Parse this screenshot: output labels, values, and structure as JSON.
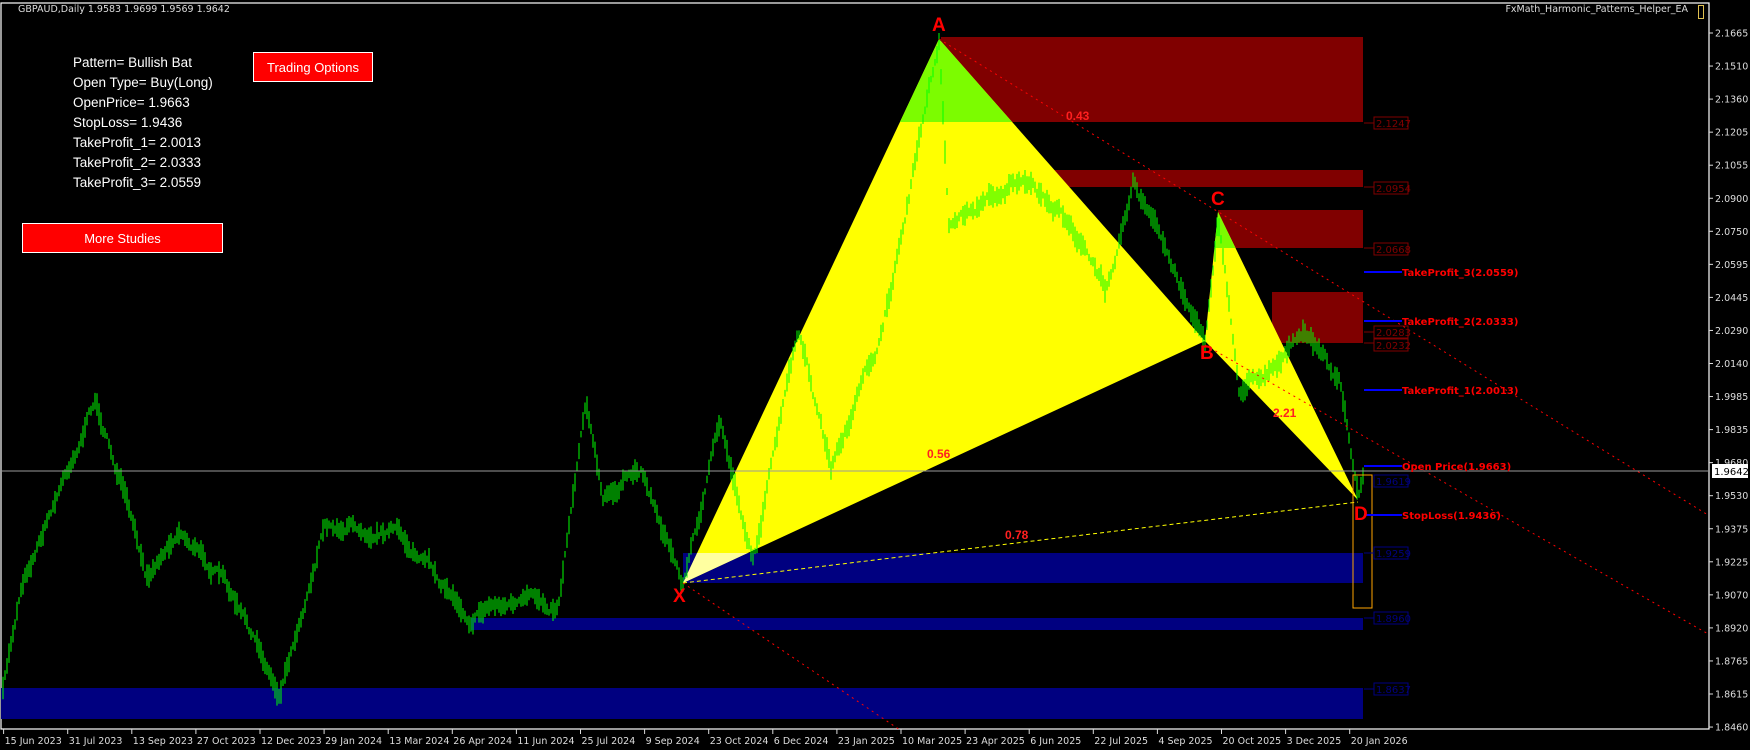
{
  "header": {
    "symbol_info": "GBPAUD,Daily  1.9583 1.9699 1.9569 1.9642",
    "ea_name": "FxMath_Harmonic_Patterns_Helper_EA",
    "ea_icon": "expert-smiley-box-icon"
  },
  "info_panel": {
    "lines": [
      "Pattern= Bullish Bat",
      "Open Type= Buy(Long)",
      "OpenPrice= 1.9663",
      "StopLoss= 1.9436",
      "TakeProfit_1= 2.0013",
      "TakeProfit_2= 2.0333",
      "TakeProfit_3= 2.0559"
    ]
  },
  "buttons": {
    "trading_options": "Trading Options",
    "more_studies": "More Studies"
  },
  "price_axis": {
    "ticks": [
      "2.1665",
      "2.1510",
      "2.1360",
      "2.1205",
      "2.1055",
      "2.0900",
      "2.0750",
      "2.0595",
      "2.0445",
      "2.0290",
      "2.0140",
      "1.9985",
      "1.9835",
      "1.9680",
      "1.9530",
      "1.9375",
      "1.9225",
      "1.9070",
      "1.8920",
      "1.8765",
      "1.8615",
      "1.8460"
    ],
    "current_price": "1.9642"
  },
  "time_axis": {
    "ticks": [
      "15 Jun 2023",
      "31 Jul 2023",
      "13 Sep 2023",
      "27 Oct 2023",
      "12 Dec 2023",
      "29 Jan 2024",
      "13 Mar 2024",
      "26 Apr 2024",
      "11 Jun 2024",
      "25 Jul 2024",
      "9 Sep 2024",
      "23 Oct 2024",
      "6 Dec 2024",
      "23 Jan 2025",
      "10 Mar 2025",
      "23 Apr 2025",
      "6 Jun 2025",
      "22 Jul 2025",
      "4 Sep 2025",
      "20 Oct 2025",
      "3 Dec 2025",
      "20 Jan 2026"
    ]
  },
  "pattern": {
    "points": {
      "x": "X",
      "a": "A",
      "b": "B",
      "c": "C",
      "d": "D"
    },
    "ratios": {
      "ab": "0.43",
      "xb": "0.56",
      "xd": "0.78",
      "bd": "2.21"
    }
  },
  "zones": {
    "resistance": [
      "2.1247",
      "2.0954",
      "2.0668",
      "2.0283",
      "2.0232"
    ],
    "support": [
      "1.9619",
      "1.9259",
      "1.8960",
      "1.8637"
    ]
  },
  "trade_levels": {
    "tp3": "TakeProfit_3(2.0559)",
    "tp2": "TakeProfit_2(2.0333)",
    "tp1": "TakeProfit_1(2.0013)",
    "open": "Open Price(1.9663)",
    "sl": "StopLoss(1.9436)"
  },
  "colors": {
    "background": "#000000",
    "candles": "#00ff00",
    "pattern_fill": "#ffff00",
    "pattern_tip": "#7cfc00",
    "resistance_zone": "#800000",
    "support_zone": "#000080",
    "trade_line": "#0000ff",
    "label_red": "#ff0000",
    "d_zone_box": "#ffa500"
  }
}
